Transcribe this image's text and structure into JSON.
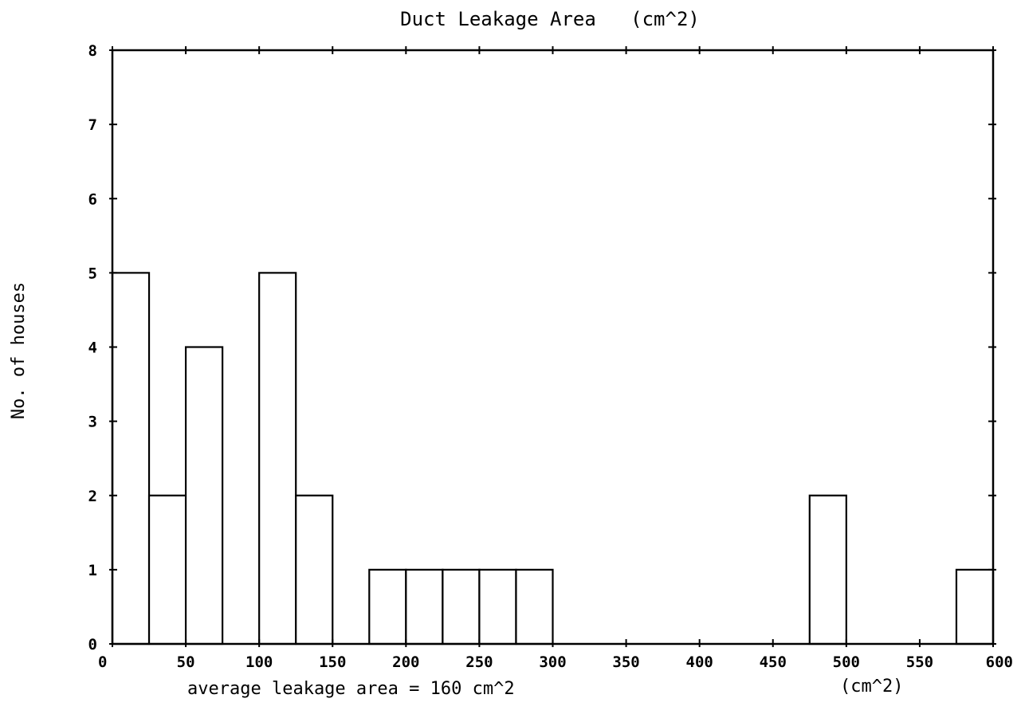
{
  "chart_data": {
    "type": "bar",
    "title": "Duct Leakage Area   (cm^2)",
    "ylabel": "No. of houses",
    "xunit_label": "(cm^2)",
    "note": "average leakage area = 160 cm^2",
    "xlim": [
      0,
      600
    ],
    "ylim": [
      0,
      8
    ],
    "xticks": [
      0,
      50,
      100,
      150,
      200,
      250,
      300,
      350,
      400,
      450,
      500,
      550,
      600
    ],
    "xtick_labels": [
      "0",
      "50",
      "100",
      "150",
      "200",
      "250",
      "300",
      "350",
      "400",
      "450",
      "500",
      "550",
      "600"
    ],
    "yticks": [
      0,
      1,
      2,
      3,
      4,
      5,
      6,
      7,
      8
    ],
    "ytick_labels": [
      "0",
      "1",
      "2",
      "3",
      "4",
      "5",
      "6",
      "7",
      "8"
    ],
    "bin_width": 25,
    "bins": [
      {
        "start": 0,
        "count": 5
      },
      {
        "start": 25,
        "count": 2
      },
      {
        "start": 50,
        "count": 4
      },
      {
        "start": 75,
        "count": 0
      },
      {
        "start": 100,
        "count": 5
      },
      {
        "start": 125,
        "count": 2
      },
      {
        "start": 150,
        "count": 0
      },
      {
        "start": 175,
        "count": 1
      },
      {
        "start": 200,
        "count": 1
      },
      {
        "start": 225,
        "count": 1
      },
      {
        "start": 250,
        "count": 1
      },
      {
        "start": 275,
        "count": 1
      },
      {
        "start": 475,
        "count": 2
      },
      {
        "start": 575,
        "count": 1
      }
    ],
    "grid": false,
    "legend": "none"
  }
}
